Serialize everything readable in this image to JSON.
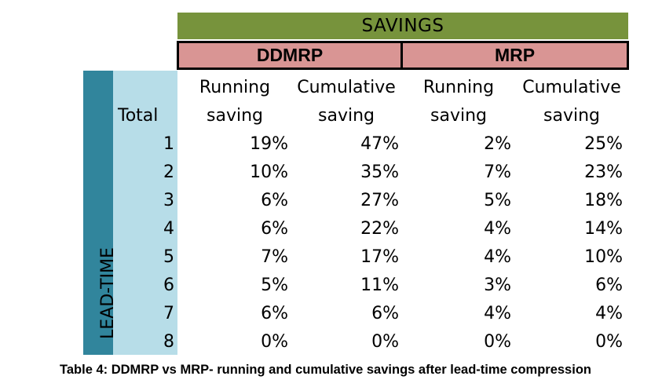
{
  "table": {
    "savings_label": "SAVINGS",
    "groups": {
      "ddmrp": "DDMRP",
      "mrp": "MRP"
    },
    "row_axis_label": "LEAD-TIME",
    "total_label": "Total",
    "col_headers": [
      [
        "Running",
        "saving"
      ],
      [
        "Cumulative",
        "saving"
      ],
      [
        "Running",
        "saving"
      ],
      [
        "Cumulative",
        "saving"
      ]
    ],
    "rows": [
      {
        "lead_time": "1",
        "ddmrp_running": "19%",
        "ddmrp_cumulative": "47%",
        "mrp_running": "2%",
        "mrp_cumulative": "25%"
      },
      {
        "lead_time": "2",
        "ddmrp_running": "10%",
        "ddmrp_cumulative": "35%",
        "mrp_running": "7%",
        "mrp_cumulative": "23%"
      },
      {
        "lead_time": "3",
        "ddmrp_running": "6%",
        "ddmrp_cumulative": "27%",
        "mrp_running": "5%",
        "mrp_cumulative": "18%"
      },
      {
        "lead_time": "4",
        "ddmrp_running": "6%",
        "ddmrp_cumulative": "22%",
        "mrp_running": "4%",
        "mrp_cumulative": "14%"
      },
      {
        "lead_time": "5",
        "ddmrp_running": "7%",
        "ddmrp_cumulative": "17%",
        "mrp_running": "4%",
        "mrp_cumulative": "10%"
      },
      {
        "lead_time": "6",
        "ddmrp_running": "5%",
        "ddmrp_cumulative": "11%",
        "mrp_running": "3%",
        "mrp_cumulative": "6%"
      },
      {
        "lead_time": "7",
        "ddmrp_running": "6%",
        "ddmrp_cumulative": "6%",
        "mrp_running": "4%",
        "mrp_cumulative": "4%"
      },
      {
        "lead_time": "8",
        "ddmrp_running": "0%",
        "ddmrp_cumulative": "0%",
        "mrp_running": "0%",
        "mrp_cumulative": "0%"
      }
    ]
  },
  "caption": "Table 4: DDMRP vs MRP- running and cumulative savings after lead-time compression",
  "colors": {
    "savings_header": "#77933c",
    "group_header": "#d99594",
    "leadtime_dark": "#31859c",
    "leadtime_light": "#b7dde8"
  }
}
